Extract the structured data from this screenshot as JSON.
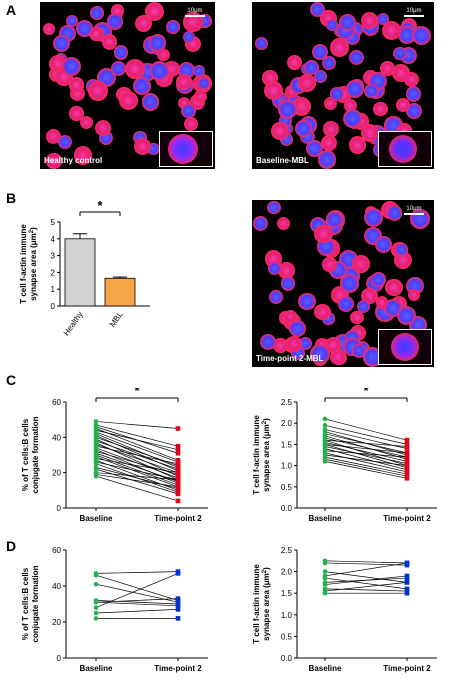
{
  "panel_letters": {
    "a": "A",
    "b": "B",
    "c": "C",
    "d": "D"
  },
  "images": {
    "healthy": {
      "label": "Healthy control",
      "scale": "10μm"
    },
    "baseline_mbl": {
      "label": "Baseline-MBL",
      "scale": "10μm"
    },
    "tp2_mbl": {
      "label": "Time-point 2-MBL",
      "scale": "10μm"
    }
  },
  "colors": {
    "healthy_bar": "#d3d3d3",
    "mbl_bar": "#f7a54a",
    "baseline": "#22b14c",
    "tp2_red": "#e3001b",
    "tp2_blue": "#0032d2"
  },
  "chart_data": [
    {
      "id": "B",
      "type": "bar",
      "categories": [
        "Healthy",
        "MBL"
      ],
      "values": [
        4.0,
        1.65
      ],
      "errors": [
        0.3,
        0.07
      ],
      "ylabel_line1": "T cell f-actin immune",
      "ylabel_line2": "synapse area (μm",
      "ylabel_sup": "2",
      "ylabel_close": ")",
      "ylim": [
        0,
        5
      ],
      "yticks": [
        0,
        1,
        2,
        3,
        4,
        5
      ],
      "significance": "*"
    },
    {
      "id": "C-left",
      "type": "line",
      "categories": [
        "Baseline",
        "Time-point 2"
      ],
      "ylabel_line1": "% of T cells:B cells",
      "ylabel_line2": "conjugate formation",
      "ylim": [
        0,
        60
      ],
      "yticks": [
        0,
        20,
        40,
        60
      ],
      "significance": "*",
      "pairs": [
        [
          49,
          45
        ],
        [
          47,
          35
        ],
        [
          46,
          31
        ],
        [
          45,
          27
        ],
        [
          44,
          33
        ],
        [
          43,
          26
        ],
        [
          42,
          23
        ],
        [
          41,
          21
        ],
        [
          40,
          24
        ],
        [
          39,
          18
        ],
        [
          38,
          22
        ],
        [
          37,
          16
        ],
        [
          36,
          20
        ],
        [
          35,
          25
        ],
        [
          34,
          17
        ],
        [
          33,
          14
        ],
        [
          32,
          19
        ],
        [
          31,
          15
        ],
        [
          30,
          13
        ],
        [
          29,
          12
        ],
        [
          28,
          20
        ],
        [
          27,
          10
        ],
        [
          26,
          16
        ],
        [
          25,
          9
        ],
        [
          23,
          11
        ],
        [
          22,
          8
        ],
        [
          20,
          16
        ],
        [
          19,
          12
        ],
        [
          18,
          4
        ]
      ]
    },
    {
      "id": "C-right",
      "type": "line",
      "categories": [
        "Baseline",
        "Time-point 2"
      ],
      "ylabel_line1": "T cell f-actin immune",
      "ylabel_line2": "synapse area (μm",
      "ylabel_sup": "2",
      "ylabel_close": ")",
      "ylim": [
        0,
        2.5
      ],
      "yticks": [
        0.0,
        0.5,
        1.0,
        1.5,
        2.0,
        2.5
      ],
      "significance": "*",
      "pairs": [
        [
          2.1,
          1.6
        ],
        [
          1.95,
          1.5
        ],
        [
          1.85,
          1.4
        ],
        [
          1.8,
          1.25
        ],
        [
          1.75,
          1.3
        ],
        [
          1.7,
          1.15
        ],
        [
          1.65,
          1.2
        ],
        [
          1.6,
          1.0
        ],
        [
          1.55,
          1.1
        ],
        [
          1.5,
          0.95
        ],
        [
          1.5,
          1.3
        ],
        [
          1.45,
          1.05
        ],
        [
          1.4,
          0.9
        ],
        [
          1.35,
          1.2
        ],
        [
          1.3,
          0.85
        ],
        [
          1.25,
          1.0
        ],
        [
          1.2,
          0.8
        ],
        [
          1.15,
          0.75
        ],
        [
          1.1,
          0.7
        ],
        [
          1.6,
          1.45
        ]
      ]
    },
    {
      "id": "D-left",
      "type": "line",
      "categories": [
        "Baseline",
        "Time-point 2"
      ],
      "ylabel_line1": "% of T cells:B cells",
      "ylabel_line2": "conjugate formation",
      "ylim": [
        0,
        60
      ],
      "yticks": [
        0,
        20,
        40,
        60
      ],
      "pairs": [
        [
          47,
          48
        ],
        [
          46,
          32
        ],
        [
          41,
          31
        ],
        [
          32,
          30
        ],
        [
          31,
          33
        ],
        [
          31,
          29
        ],
        [
          28,
          47
        ],
        [
          25,
          27
        ],
        [
          22,
          22
        ]
      ]
    },
    {
      "id": "D-right",
      "type": "line",
      "categories": [
        "Baseline",
        "Time-point 2"
      ],
      "ylabel_line1": "T cell f-actin immune",
      "ylabel_line2": "synapse area (μm",
      "ylabel_sup": "2",
      "ylabel_close": ")",
      "ylim": [
        0,
        2.5
      ],
      "yticks": [
        0.0,
        0.5,
        1.0,
        1.5,
        2.0,
        2.5
      ],
      "pairs": [
        [
          2.25,
          2.2
        ],
        [
          2.2,
          2.15
        ],
        [
          2.0,
          1.75
        ],
        [
          1.9,
          2.2
        ],
        [
          1.85,
          1.6
        ],
        [
          1.75,
          1.85
        ],
        [
          1.7,
          1.9
        ],
        [
          1.6,
          1.55
        ],
        [
          1.55,
          1.75
        ],
        [
          1.5,
          1.5
        ]
      ]
    }
  ]
}
